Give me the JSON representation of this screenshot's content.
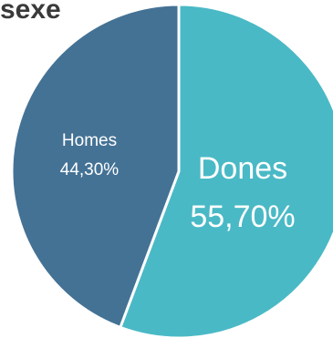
{
  "chart_data": {
    "type": "pie",
    "title": "sexe",
    "slices": [
      {
        "label": "Dones",
        "value_text": "55,70%",
        "value": 55.7,
        "color": "#4ab9c6"
      },
      {
        "label": "Homes",
        "value_text": "44,30%",
        "value": 44.3,
        "color": "#447295"
      }
    ],
    "start": "12 o'clock",
    "direction": "clockwise"
  }
}
